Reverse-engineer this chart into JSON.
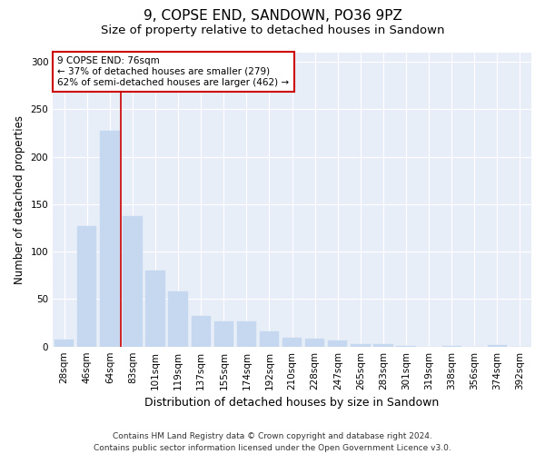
{
  "title": "9, COPSE END, SANDOWN, PO36 9PZ",
  "subtitle": "Size of property relative to detached houses in Sandown",
  "xlabel": "Distribution of detached houses by size in Sandown",
  "ylabel": "Number of detached properties",
  "categories": [
    "28sqm",
    "46sqm",
    "64sqm",
    "83sqm",
    "101sqm",
    "119sqm",
    "137sqm",
    "155sqm",
    "174sqm",
    "192sqm",
    "210sqm",
    "228sqm",
    "247sqm",
    "265sqm",
    "283sqm",
    "301sqm",
    "319sqm",
    "338sqm",
    "356sqm",
    "374sqm",
    "392sqm"
  ],
  "values": [
    7,
    127,
    227,
    137,
    80,
    58,
    32,
    26,
    26,
    16,
    9,
    8,
    6,
    3,
    3,
    1,
    0,
    1,
    0,
    2,
    0
  ],
  "bar_color": "#c5d8f0",
  "bar_edge_color": "#c5d8f0",
  "vline_x": 2.5,
  "vline_color": "#cc0000",
  "annotation_text": "9 COPSE END: 76sqm\n← 37% of detached houses are smaller (279)\n62% of semi-detached houses are larger (462) →",
  "annotation_box_color": "#ffffff",
  "annotation_box_edge_color": "#cc0000",
  "ylim": [
    0,
    310
  ],
  "yticks": [
    0,
    50,
    100,
    150,
    200,
    250,
    300
  ],
  "footer": "Contains HM Land Registry data © Crown copyright and database right 2024.\nContains public sector information licensed under the Open Government Licence v3.0.",
  "background_color": "#e8eef8",
  "title_fontsize": 11,
  "subtitle_fontsize": 9.5,
  "xlabel_fontsize": 9,
  "ylabel_fontsize": 8.5,
  "tick_fontsize": 7.5,
  "footer_fontsize": 6.5,
  "annotation_fontsize": 7.5
}
